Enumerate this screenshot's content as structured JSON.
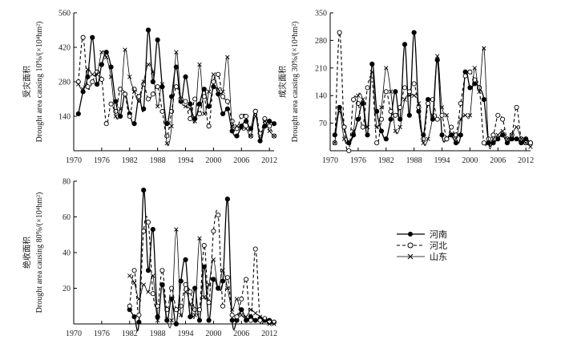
{
  "chart_data": [
    {
      "type": "line",
      "ylabel_cn": "受灾面积",
      "ylabel_en": "Drought area causing 10%/(×10⁴hm²)",
      "xlim": [
        1970,
        2013
      ],
      "ylim": [
        0,
        560
      ],
      "xticks": [
        1970,
        1976,
        1982,
        1988,
        1994,
        2000,
        2006,
        2012
      ],
      "yticks": [
        140,
        280,
        420,
        560
      ],
      "series": [
        {
          "name": "河南",
          "x": [
            1971,
            1972,
            1973,
            1974,
            1975,
            1976,
            1977,
            1978,
            1979,
            1980,
            1981,
            1982,
            1983,
            1984,
            1985,
            1986,
            1987,
            1988,
            1989,
            1990,
            1991,
            1992,
            1993,
            1994,
            1995,
            1996,
            1997,
            1998,
            1999,
            2000,
            2001,
            2002,
            2003,
            2004,
            2005,
            2006,
            2007,
            2008,
            2009,
            2010,
            2011,
            2012,
            2013
          ],
          "values": [
            150,
            240,
            300,
            460,
            270,
            350,
            400,
            340,
            200,
            140,
            230,
            150,
            110,
            220,
            170,
            490,
            280,
            450,
            260,
            110,
            220,
            340,
            200,
            300,
            190,
            130,
            190,
            250,
            180,
            260,
            230,
            150,
            170,
            80,
            60,
            100,
            120,
            90,
            160,
            40,
            100,
            120,
            110
          ]
        },
        {
          "name": "河北",
          "x": [
            1971,
            1972,
            1973,
            1974,
            1975,
            1976,
            1977,
            1978,
            1979,
            1980,
            1981,
            1982,
            1983,
            1984,
            1985,
            1986,
            1987,
            1988,
            1989,
            1990,
            1991,
            1992,
            1993,
            1994,
            1995,
            1996,
            1997,
            1998,
            1999,
            2000,
            2001,
            2002,
            2003,
            2004,
            2005,
            2006,
            2007,
            2008,
            2009,
            2010,
            2011,
            2012,
            2013
          ],
          "values": [
            280,
            460,
            260,
            280,
            320,
            290,
            110,
            190,
            160,
            250,
            230,
            140,
            250,
            220,
            270,
            210,
            230,
            260,
            160,
            60,
            160,
            260,
            210,
            200,
            130,
            210,
            150,
            220,
            100,
            280,
            310,
            220,
            200,
            120,
            90,
            140,
            140,
            60,
            160,
            70,
            130,
            100,
            60
          ]
        },
        {
          "name": "山东",
          "x": [
            1971,
            1972,
            1973,
            1974,
            1975,
            1976,
            1977,
            1978,
            1979,
            1980,
            1981,
            1982,
            1983,
            1984,
            1985,
            1986,
            1987,
            1988,
            1989,
            1990,
            1991,
            1992,
            1993,
            1994,
            1995,
            1996,
            1997,
            1998,
            1999,
            2000,
            2001,
            2002,
            2003,
            2004,
            2005,
            2006,
            2007,
            2008,
            2009,
            2010,
            2011,
            2012,
            2013
          ],
          "values": [
            270,
            250,
            330,
            310,
            310,
            400,
            380,
            300,
            140,
            170,
            410,
            300,
            240,
            200,
            280,
            350,
            320,
            180,
            270,
            30,
            100,
            400,
            210,
            180,
            170,
            120,
            350,
            150,
            240,
            310,
            250,
            240,
            380,
            100,
            100,
            90,
            90,
            60,
            140,
            50,
            120,
            80,
            60
          ]
        }
      ]
    },
    {
      "type": "line",
      "ylabel_cn": "成灾面积",
      "ylabel_en": "Drought area causing 30%/(×10⁴hm²)",
      "xlim": [
        1970,
        2013
      ],
      "ylim": [
        0,
        350
      ],
      "xticks": [
        1970,
        1976,
        1982,
        1988,
        1994,
        2000,
        2006,
        2012
      ],
      "yticks": [
        70,
        140,
        210,
        280,
        350
      ],
      "series": [
        {
          "name": "河南",
          "x": [
            1971,
            1972,
            1973,
            1974,
            1975,
            1976,
            1977,
            1978,
            1979,
            1980,
            1981,
            1982,
            1983,
            1984,
            1985,
            1986,
            1987,
            1988,
            1989,
            1990,
            1991,
            1992,
            1993,
            1994,
            1995,
            1996,
            1997,
            1998,
            1999,
            2000,
            2001,
            2002,
            2003,
            2004,
            2005,
            2006,
            2007,
            2008,
            2009,
            2010,
            2011,
            2012,
            2013
          ],
          "values": [
            40,
            110,
            60,
            20,
            40,
            80,
            120,
            40,
            220,
            100,
            50,
            30,
            80,
            150,
            80,
            270,
            90,
            300,
            100,
            40,
            130,
            80,
            230,
            40,
            30,
            40,
            20,
            40,
            200,
            160,
            170,
            160,
            130,
            20,
            20,
            30,
            40,
            20,
            30,
            30,
            20,
            30,
            20
          ]
        },
        {
          "name": "河北",
          "x": [
            1971,
            1972,
            1973,
            1974,
            1975,
            1976,
            1977,
            1978,
            1979,
            1980,
            1981,
            1982,
            1983,
            1984,
            1985,
            1986,
            1987,
            1988,
            1989,
            1990,
            1991,
            1992,
            1993,
            1994,
            1995,
            1996,
            1997,
            1998,
            1999,
            2000,
            2001,
            2002,
            2003,
            2004,
            2005,
            2006,
            2007,
            2008,
            2009,
            2010,
            2011,
            2012,
            2013
          ],
          "values": [
            20,
            300,
            60,
            0,
            130,
            120,
            60,
            160,
            180,
            20,
            80,
            150,
            100,
            90,
            110,
            160,
            150,
            170,
            110,
            30,
            120,
            130,
            80,
            90,
            30,
            60,
            40,
            120,
            190,
            200,
            180,
            160,
            20,
            30,
            40,
            90,
            80,
            30,
            40,
            110,
            30,
            20,
            20
          ]
        },
        {
          "name": "山东",
          "x": [
            1971,
            1972,
            1973,
            1974,
            1975,
            1976,
            1977,
            1978,
            1979,
            1980,
            1981,
            1982,
            1983,
            1984,
            1985,
            1986,
            1987,
            1988,
            1989,
            1990,
            1991,
            1992,
            1993,
            1994,
            1995,
            1996,
            1997,
            1998,
            1999,
            2000,
            2001,
            2002,
            2003,
            2004,
            2005,
            2006,
            2007,
            2008,
            2009,
            2010,
            2011,
            2012,
            2013
          ],
          "values": [
            20,
            100,
            30,
            20,
            50,
            140,
            130,
            60,
            200,
            60,
            110,
            210,
            150,
            50,
            60,
            130,
            140,
            140,
            120,
            20,
            30,
            90,
            240,
            110,
            90,
            40,
            30,
            80,
            90,
            90,
            210,
            150,
            260,
            20,
            30,
            40,
            50,
            30,
            40,
            60,
            30,
            20,
            10
          ]
        }
      ]
    },
    {
      "type": "line",
      "ylabel_cn": "绝收面积",
      "ylabel_en": "Drought area causing 80%/(×10⁴hm²)",
      "xlim": [
        1970,
        2013
      ],
      "ylim": [
        0,
        80
      ],
      "xticks": [
        1970,
        1976,
        1982,
        1988,
        1994,
        2000,
        2006,
        2012
      ],
      "yticks": [
        20,
        40,
        60,
        80
      ],
      "series": [
        {
          "name": "河南",
          "x": [
            1982,
            1983,
            1984,
            1985,
            1986,
            1987,
            1988,
            1989,
            1990,
            1991,
            1992,
            1993,
            1994,
            1995,
            1996,
            1997,
            1998,
            1999,
            2000,
            2001,
            2002,
            2003,
            2004,
            2005,
            2006,
            2007,
            2008,
            2009,
            2010,
            2011,
            2012,
            2013
          ],
          "values": [
            8,
            4,
            1,
            75,
            30,
            53,
            4,
            22,
            2,
            14,
            0,
            24,
            36,
            4,
            20,
            2,
            32,
            2,
            25,
            20,
            24,
            70,
            2,
            2,
            8,
            2,
            4,
            2,
            3,
            2,
            2,
            1
          ]
        },
        {
          "name": "河北",
          "x": [
            1982,
            1983,
            1984,
            1985,
            1986,
            1987,
            1988,
            1989,
            1990,
            1991,
            1992,
            1993,
            1994,
            1995,
            1996,
            1997,
            1998,
            1999,
            2000,
            2001,
            2002,
            2003,
            2004,
            2005,
            2006,
            2007,
            2008,
            2009,
            2010,
            2011,
            2012,
            2013
          ],
          "values": [
            10,
            30,
            5,
            52,
            57,
            17,
            10,
            30,
            8,
            20,
            8,
            10,
            22,
            18,
            8,
            8,
            44,
            12,
            52,
            61,
            10,
            26,
            5,
            4,
            14,
            25,
            2,
            42,
            2,
            3,
            1,
            1
          ]
        },
        {
          "name": "山东",
          "x": [
            1982,
            1983,
            1984,
            1985,
            1986,
            1987,
            1988,
            1989,
            1990,
            1991,
            1992,
            1993,
            1994,
            1995,
            1996,
            1997,
            1998,
            1999,
            2000,
            2001,
            2002,
            2003,
            2004,
            2005,
            2006,
            2007,
            2008,
            2009,
            2010,
            2011,
            2012,
            2013
          ],
          "values": [
            27,
            23,
            14,
            22,
            18,
            27,
            2,
            22,
            3,
            2,
            53,
            5,
            18,
            11,
            5,
            48,
            15,
            22,
            36,
            20,
            30,
            20,
            8,
            14,
            5,
            4,
            8,
            6,
            4,
            2,
            0,
            0
          ]
        }
      ]
    }
  ],
  "legend": [
    {
      "name": "河南",
      "marker": "filled-circle",
      "line": "solid"
    },
    {
      "name": "河北",
      "marker": "open-circle",
      "line": "dashed"
    },
    {
      "name": "山东",
      "marker": "cross",
      "line": "thin-solid"
    }
  ]
}
